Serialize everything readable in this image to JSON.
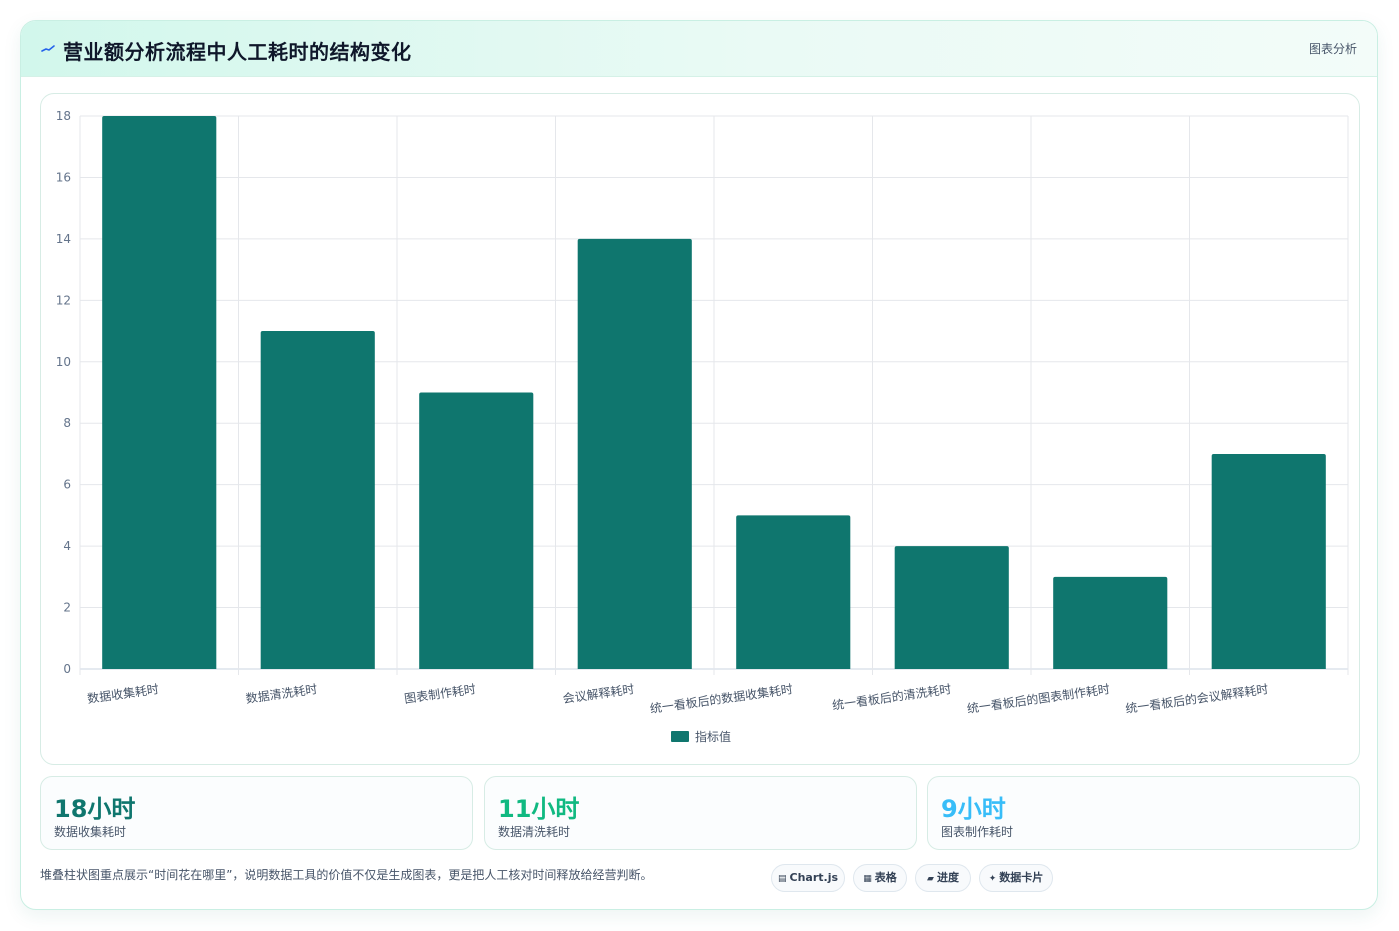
{
  "header": {
    "title": "营业额分析流程中人工耗时的结构变化",
    "tag": "图表分析"
  },
  "chart_data": {
    "type": "bar",
    "categories": [
      "数据收集耗时",
      "数据清洗耗时",
      "图表制作耗时",
      "会议解释耗时",
      "统一看板后的数据收集耗时",
      "统一看板后的清洗耗时",
      "统一看板后的图表制作耗时",
      "统一看板后的会议解释耗时"
    ],
    "series": [
      {
        "name": "指标值",
        "values": [
          18,
          11,
          9,
          14,
          5,
          4,
          3,
          7
        ]
      }
    ],
    "ylim": [
      0,
      18
    ],
    "yticks": [
      0,
      2,
      4,
      6,
      8,
      10,
      12,
      14,
      16,
      18
    ],
    "grid": true,
    "legend_position": "bottom",
    "bar_color": "#0f766e"
  },
  "kpis": [
    {
      "value": "18小时",
      "label": "数据收集耗时",
      "color": "#0f766e"
    },
    {
      "value": "11小时",
      "label": "数据清洗耗时",
      "color": "#10b981"
    },
    {
      "value": "9小时",
      "label": "图表制作耗时",
      "color": "#38bdf8"
    }
  ],
  "footnote": "堆叠柱状图重点展示“时间花在哪里”，说明数据工具的价值不仅是生成图表，更是把人工核对时间释放给经营判断。",
  "chips": [
    {
      "icon": "chart-icon",
      "label": "Chart.js"
    },
    {
      "icon": "table-icon",
      "label": "表格"
    },
    {
      "icon": "progress-icon",
      "label": "进度"
    },
    {
      "icon": "sparkle-icon",
      "label": "数据卡片"
    }
  ]
}
